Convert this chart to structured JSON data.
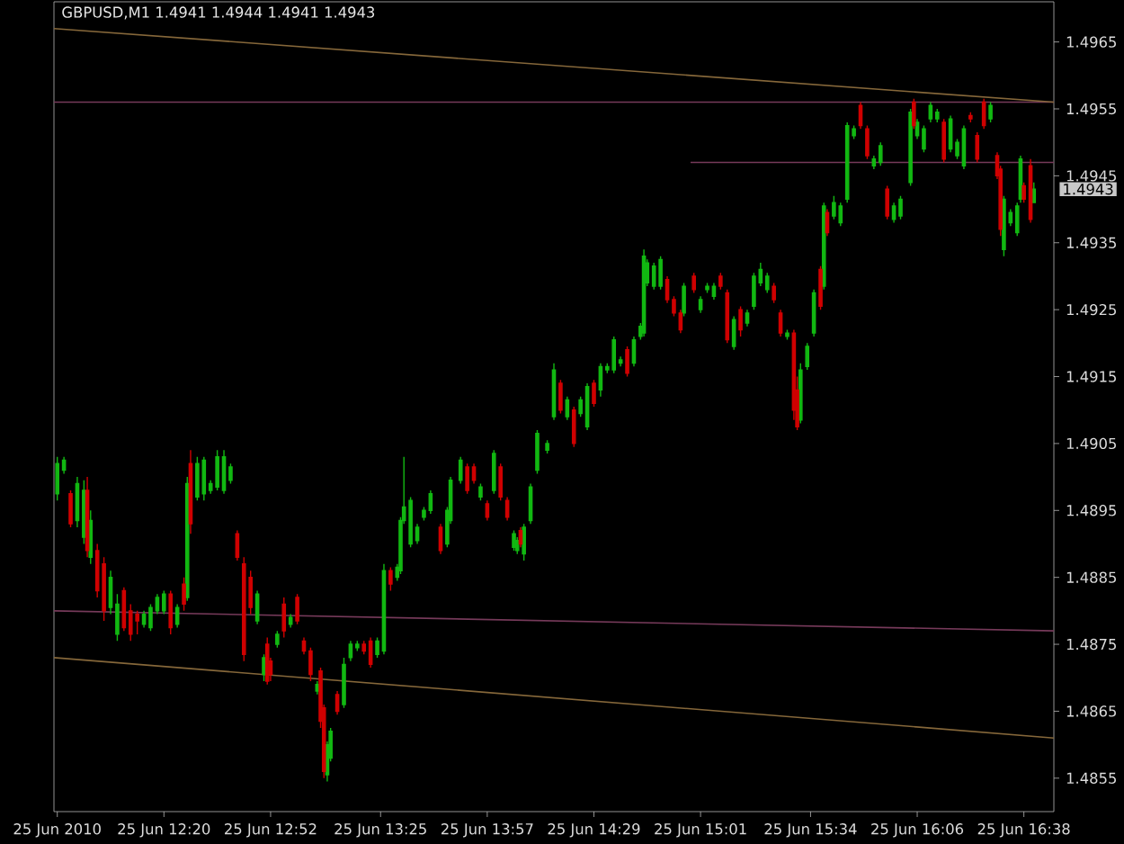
{
  "chart_data": {
    "type": "candlestick",
    "title": "GBPUSD,M1 1.4941 1.4944 1.4941 1.4943",
    "series": [
      {
        "type": "line",
        "color": "#85673a",
        "x": [
          "2010-06-25T11:47",
          "2010-06-25T16:47"
        ],
        "values": [
          1.4967,
          1.4956
        ]
      },
      {
        "type": "line",
        "color": "#763a5a",
        "x": [
          "2010-06-25T11:47",
          "2010-06-25T16:47"
        ],
        "values": [
          1.488,
          1.4877
        ]
      },
      {
        "type": "line",
        "color": "#85673a",
        "x": [
          "2010-06-25T11:47",
          "2010-06-25T16:47"
        ],
        "values": [
          1.4873,
          1.4861
        ]
      },
      {
        "type": "line",
        "color": "#763a5a",
        "x": [
          "2010-06-25T14:58",
          "2010-06-25T16:47"
        ],
        "values": [
          1.4947,
          1.4947
        ]
      },
      {
        "color": "#12b812",
        "x": [
          "2010-06-25T11:48",
          "2010-06-25T11:50",
          "2010-06-25T11:54",
          "2010-06-25T11:56",
          "2010-06-25T11:58",
          "2010-06-25T12:04",
          "2010-06-25T12:06",
          "2010-06-25T12:14",
          "2010-06-25T12:16",
          "2010-06-25T12:18",
          "2010-06-25T12:20",
          "2010-06-25T12:24",
          "2010-06-25T12:27",
          "2010-06-25T12:30",
          "2010-06-25T12:32",
          "2010-06-25T12:34",
          "2010-06-25T12:36",
          "2010-06-25T12:38",
          "2010-06-25T12:40",
          "2010-06-25T12:48",
          "2010-06-25T12:50",
          "2010-06-25T12:54",
          "2010-06-25T12:58",
          "2010-06-25T13:06",
          "2010-06-25T13:09",
          "2010-06-25T13:10",
          "2010-06-25T13:14",
          "2010-06-25T13:16",
          "2010-06-25T13:18",
          "2010-06-25T13:24",
          "2010-06-25T13:26",
          "2010-06-25T13:30",
          "2010-06-25T13:31",
          "2010-06-25T13:32",
          "2010-06-25T13:34",
          "2010-06-25T13:36",
          "2010-06-25T13:38",
          "2010-06-25T13:40",
          "2010-06-25T13:45",
          "2010-06-25T13:46",
          "2010-06-25T13:49",
          "2010-06-25T13:55",
          "2010-06-25T13:59",
          "2010-06-25T14:05",
          "2010-06-25T14:06",
          "2010-06-25T14:08",
          "2010-06-25T14:10",
          "2010-06-25T14:12",
          "2010-06-25T14:15",
          "2010-06-25T14:17",
          "2010-06-25T14:21",
          "2010-06-25T14:25",
          "2010-06-25T14:27",
          "2010-06-25T14:31",
          "2010-06-25T14:33",
          "2010-06-25T14:35",
          "2010-06-25T14:37",
          "2010-06-25T14:41",
          "2010-06-25T14:43",
          "2010-06-25T14:44",
          "2010-06-25T14:45",
          "2010-06-25T14:47",
          "2010-06-25T14:49",
          "2010-06-25T14:56",
          "2010-06-25T15:01",
          "2010-06-25T15:03",
          "2010-06-25T15:05",
          "2010-06-25T15:11",
          "2010-06-25T15:15",
          "2010-06-25T15:17",
          "2010-06-25T15:19",
          "2010-06-25T15:21",
          "2010-06-25T15:27",
          "2010-06-25T15:31",
          "2010-06-25T15:33",
          "2010-06-25T15:35",
          "2010-06-25T15:38",
          "2010-06-25T15:41",
          "2010-06-25T15:43",
          "2010-06-25T15:45",
          "2010-06-25T15:47",
          "2010-06-25T15:53",
          "2010-06-25T15:55",
          "2010-06-25T15:59",
          "2010-06-25T16:01",
          "2010-06-25T16:04",
          "2010-06-25T16:06",
          "2010-06-25T16:08",
          "2010-06-25T16:10",
          "2010-06-25T16:12",
          "2010-06-25T16:16",
          "2010-06-25T16:18",
          "2010-06-25T16:20",
          "2010-06-25T16:28",
          "2010-06-25T16:32",
          "2010-06-25T16:34",
          "2010-06-25T16:36",
          "2010-06-25T16:37",
          "2010-06-25T16:41"
        ],
        "ohlc": [
          [
            1.48975,
            1.4903,
            1.48965,
            1.4902
          ],
          [
            1.4901,
            1.4903,
            1.49005,
            1.49025
          ],
          [
            1.48935,
            1.49,
            1.48925,
            1.4899
          ],
          [
            1.4891,
            1.48995,
            1.489,
            1.4898
          ],
          [
            1.4888,
            1.4895,
            1.4887,
            1.48935
          ],
          [
            1.48805,
            1.4886,
            1.48795,
            1.4885
          ],
          [
            1.48765,
            1.48825,
            1.48755,
            1.4881
          ],
          [
            1.4878,
            1.488,
            1.48775,
            1.48795
          ],
          [
            1.48775,
            1.4881,
            1.4877,
            1.48805
          ],
          [
            1.488,
            1.48825,
            1.48795,
            1.4882
          ],
          [
            1.488,
            1.4883,
            1.48795,
            1.48825
          ],
          [
            1.4878,
            1.4881,
            1.48775,
            1.48805
          ],
          [
            1.4882,
            1.49,
            1.48815,
            1.4899
          ],
          [
            1.4897,
            1.4903,
            1.48965,
            1.4902
          ],
          [
            1.48975,
            1.4903,
            1.48965,
            1.49025
          ],
          [
            1.4898,
            1.48995,
            1.48975,
            1.4899
          ],
          [
            1.48985,
            1.4904,
            1.4898,
            1.4903
          ],
          [
            1.4898,
            1.4904,
            1.48975,
            1.4903
          ],
          [
            1.48995,
            1.4902,
            1.4899,
            1.49015
          ],
          [
            1.48785,
            1.4883,
            1.4878,
            1.48825
          ],
          [
            1.48705,
            1.48735,
            1.48695,
            1.4873
          ],
          [
            1.4875,
            1.4877,
            1.48745,
            1.48765
          ],
          [
            1.4878,
            1.48795,
            1.48775,
            1.4879
          ],
          [
            1.4868,
            1.48695,
            1.48675,
            1.4869
          ],
          [
            1.48555,
            1.48605,
            1.48545,
            1.486
          ],
          [
            1.4858,
            1.48625,
            1.48575,
            1.4862
          ],
          [
            1.4866,
            1.4873,
            1.48655,
            1.4872
          ],
          [
            1.4873,
            1.48755,
            1.48725,
            1.4875
          ],
          [
            1.48745,
            1.48755,
            1.4874,
            1.4875
          ],
          [
            1.48735,
            1.4876,
            1.4873,
            1.48755
          ],
          [
            1.4874,
            1.4887,
            1.48735,
            1.4886
          ],
          [
            1.4885,
            1.4887,
            1.48845,
            1.48865
          ],
          [
            1.4886,
            1.4894,
            1.48855,
            1.48935
          ],
          [
            1.48935,
            1.4903,
            1.4893,
            1.48955
          ],
          [
            1.489,
            1.4897,
            1.48895,
            1.48965
          ],
          [
            1.48905,
            1.4893,
            1.489,
            1.48925
          ],
          [
            1.4894,
            1.48955,
            1.48935,
            1.4895
          ],
          [
            1.4895,
            1.4898,
            1.48945,
            1.48975
          ],
          [
            1.489,
            1.48955,
            1.48895,
            1.4895
          ],
          [
            1.48935,
            1.49,
            1.4893,
            1.48995
          ],
          [
            1.48995,
            1.4903,
            1.4899,
            1.49025
          ],
          [
            1.4897,
            1.4899,
            1.48965,
            1.48985
          ],
          [
            1.4898,
            1.4904,
            1.48975,
            1.49035
          ],
          [
            1.48895,
            1.4892,
            1.4889,
            1.48915
          ],
          [
            1.4889,
            1.4891,
            1.48885,
            1.48905
          ],
          [
            1.48885,
            1.4893,
            1.48875,
            1.48925
          ],
          [
            1.48935,
            1.4899,
            1.4893,
            1.48985
          ],
          [
            1.4901,
            1.4907,
            1.49005,
            1.49065
          ],
          [
            1.4904,
            1.49055,
            1.49035,
            1.4905
          ],
          [
            1.4909,
            1.4917,
            1.49085,
            1.4916
          ],
          [
            1.4909,
            1.4912,
            1.49085,
            1.49115
          ],
          [
            1.49095,
            1.4912,
            1.4909,
            1.49115
          ],
          [
            1.49075,
            1.4914,
            1.4907,
            1.49135
          ],
          [
            1.4913,
            1.4917,
            1.4912,
            1.49165
          ],
          [
            1.4916,
            1.4917,
            1.49155,
            1.49165
          ],
          [
            1.4916,
            1.4921,
            1.49155,
            1.49205
          ],
          [
            1.4917,
            1.4918,
            1.49165,
            1.49175
          ],
          [
            1.4917,
            1.4921,
            1.49165,
            1.49205
          ],
          [
            1.4921,
            1.4923,
            1.49205,
            1.49225
          ],
          [
            1.49215,
            1.4934,
            1.4921,
            1.4933
          ],
          [
            1.4929,
            1.49325,
            1.49285,
            1.4932
          ],
          [
            1.49285,
            1.4932,
            1.4928,
            1.49315
          ],
          [
            1.49285,
            1.4933,
            1.4928,
            1.49325
          ],
          [
            1.49245,
            1.4929,
            1.4924,
            1.49285
          ],
          [
            1.4925,
            1.4927,
            1.49245,
            1.49265
          ],
          [
            1.4928,
            1.4929,
            1.49275,
            1.49285
          ],
          [
            1.4927,
            1.4929,
            1.49265,
            1.49285
          ],
          [
            1.49195,
            1.4924,
            1.4919,
            1.49235
          ],
          [
            1.4923,
            1.4925,
            1.49225,
            1.49245
          ],
          [
            1.49255,
            1.49305,
            1.4925,
            1.493
          ],
          [
            1.4929,
            1.4932,
            1.49285,
            1.4931
          ],
          [
            1.4928,
            1.49305,
            1.49275,
            1.493
          ],
          [
            1.4921,
            1.4922,
            1.49205,
            1.49215
          ],
          [
            1.49085,
            1.4917,
            1.4908,
            1.4916
          ],
          [
            1.49165,
            1.492,
            1.4916,
            1.49195
          ],
          [
            1.49215,
            1.4928,
            1.4921,
            1.49275
          ],
          [
            1.49285,
            1.4941,
            1.4928,
            1.49405
          ],
          [
            1.4939,
            1.4942,
            1.49385,
            1.4941
          ],
          [
            1.4938,
            1.4941,
            1.49375,
            1.49405
          ],
          [
            1.49415,
            1.4953,
            1.4941,
            1.49525
          ],
          [
            1.4951,
            1.49525,
            1.49505,
            1.4952
          ],
          [
            1.49465,
            1.4948,
            1.4946,
            1.49475
          ],
          [
            1.4947,
            1.495,
            1.49465,
            1.49495
          ],
          [
            1.49385,
            1.4941,
            1.4938,
            1.49405
          ],
          [
            1.4939,
            1.4942,
            1.49385,
            1.49415
          ],
          [
            1.4944,
            1.4955,
            1.49435,
            1.49545
          ],
          [
            1.4951,
            1.49535,
            1.49505,
            1.4953
          ],
          [
            1.4949,
            1.49525,
            1.49485,
            1.4952
          ],
          [
            1.49535,
            1.4956,
            1.4953,
            1.49555
          ],
          [
            1.49535,
            1.4955,
            1.4953,
            1.49545
          ],
          [
            1.4949,
            1.4954,
            1.49485,
            1.49535
          ],
          [
            1.4948,
            1.49505,
            1.49475,
            1.495
          ],
          [
            1.49465,
            1.49525,
            1.4946,
            1.4952
          ],
          [
            1.49535,
            1.4956,
            1.4953,
            1.49555
          ],
          [
            1.4934,
            1.4942,
            1.4933,
            1.49415
          ],
          [
            1.4938,
            1.494,
            1.49375,
            1.49395
          ],
          [
            1.49365,
            1.4941,
            1.4936,
            1.49405
          ],
          [
            1.49415,
            1.4948,
            1.4941,
            1.49475
          ],
          [
            1.4941,
            1.4944,
            1.4941,
            1.4943
          ]
        ]
      },
      {
        "color": "#d00000",
        "x": [
          "2010-06-25T11:52",
          "2010-06-25T11:57",
          "2010-06-25T12:00",
          "2010-06-25T12:02",
          "2010-06-25T12:08",
          "2010-06-25T12:10",
          "2010-06-25T12:12",
          "2010-06-25T12:22",
          "2010-06-25T12:26",
          "2010-06-25T12:28",
          "2010-06-25T12:42",
          "2010-06-25T12:44",
          "2010-06-25T12:46",
          "2010-06-25T12:51",
          "2010-06-25T12:52",
          "2010-06-25T12:56",
          "2010-06-25T13:00",
          "2010-06-25T13:02",
          "2010-06-25T13:04",
          "2010-06-25T13:07",
          "2010-06-25T13:08",
          "2010-06-25T13:12",
          "2010-06-25T13:20",
          "2010-06-25T13:22",
          "2010-06-25T13:28",
          "2010-06-25T13:43",
          "2010-06-25T13:51",
          "2010-06-25T13:53",
          "2010-06-25T13:57",
          "2010-06-25T14:01",
          "2010-06-25T14:03",
          "2010-06-25T14:07",
          "2010-06-25T14:19",
          "2010-06-25T14:23",
          "2010-06-25T14:29",
          "2010-06-25T14:39",
          "2010-06-25T14:51",
          "2010-06-25T14:53",
          "2010-06-25T14:55",
          "2010-06-25T14:59",
          "2010-06-25T15:07",
          "2010-06-25T15:09",
          "2010-06-25T15:13",
          "2010-06-25T15:23",
          "2010-06-25T15:25",
          "2010-06-25T15:29",
          "2010-06-25T15:30",
          "2010-06-25T15:37",
          "2010-06-25T15:39",
          "2010-06-25T15:49",
          "2010-06-25T15:51",
          "2010-06-25T15:57",
          "2010-06-25T16:05",
          "2010-06-25T16:14",
          "2010-06-25T16:22",
          "2010-06-25T16:24",
          "2010-06-25T16:26",
          "2010-06-25T16:30",
          "2010-06-25T16:31",
          "2010-06-25T16:38",
          "2010-06-25T16:40"
        ],
        "ohlc": [
          [
            1.48975,
            1.4898,
            1.48925,
            1.4893
          ],
          [
            1.4898,
            1.49,
            1.4888,
            1.4889
          ],
          [
            1.4889,
            1.489,
            1.4882,
            1.4883
          ],
          [
            1.4887,
            1.4888,
            1.48785,
            1.488
          ],
          [
            1.4883,
            1.48835,
            1.4877,
            1.48775
          ],
          [
            1.488,
            1.4881,
            1.48755,
            1.48765
          ],
          [
            1.48795,
            1.488,
            1.48765,
            1.48785
          ],
          [
            1.48825,
            1.4883,
            1.48765,
            1.48775
          ],
          [
            1.4884,
            1.4885,
            1.488,
            1.4881
          ],
          [
            1.4902,
            1.4904,
            1.48915,
            1.4893
          ],
          [
            1.48915,
            1.4892,
            1.48875,
            1.4888
          ],
          [
            1.4887,
            1.4888,
            1.48725,
            1.48735
          ],
          [
            1.4885,
            1.4886,
            1.48795,
            1.48805
          ],
          [
            1.4875,
            1.4876,
            1.4869,
            1.48695
          ],
          [
            1.48725,
            1.4873,
            1.48695,
            1.48705
          ],
          [
            1.4881,
            1.4882,
            1.4876,
            1.4877
          ],
          [
            1.4882,
            1.48825,
            1.4878,
            1.48785
          ],
          [
            1.48755,
            1.4876,
            1.48735,
            1.4874
          ],
          [
            1.4874,
            1.48745,
            1.48695,
            1.48705
          ],
          [
            1.4871,
            1.48715,
            1.48625,
            1.48635
          ],
          [
            1.48655,
            1.4866,
            1.4855,
            1.4856
          ],
          [
            1.48675,
            1.4868,
            1.48645,
            1.4865
          ],
          [
            1.4875,
            1.48755,
            1.48735,
            1.4874
          ],
          [
            1.48755,
            1.4876,
            1.48715,
            1.4872
          ],
          [
            1.4886,
            1.48865,
            1.4883,
            1.4884
          ],
          [
            1.48925,
            1.4893,
            1.48885,
            1.4889
          ],
          [
            1.49015,
            1.4902,
            1.48975,
            1.4898
          ],
          [
            1.49015,
            1.4902,
            1.4899,
            1.48995
          ],
          [
            1.4896,
            1.48965,
            1.48935,
            1.4894
          ],
          [
            1.49015,
            1.4902,
            1.48965,
            1.4897
          ],
          [
            1.48965,
            1.4897,
            1.48935,
            1.4894
          ],
          [
            1.4892,
            1.48925,
            1.48895,
            1.489
          ],
          [
            1.4914,
            1.49145,
            1.49095,
            1.491
          ],
          [
            1.491,
            1.49105,
            1.49045,
            1.4905
          ],
          [
            1.4914,
            1.49145,
            1.49105,
            1.4911
          ],
          [
            1.4919,
            1.49195,
            1.4915,
            1.49155
          ],
          [
            1.49295,
            1.493,
            1.4926,
            1.49265
          ],
          [
            1.49265,
            1.4927,
            1.4924,
            1.49245
          ],
          [
            1.49245,
            1.4925,
            1.49215,
            1.4922
          ],
          [
            1.493,
            1.49305,
            1.49275,
            1.4928
          ],
          [
            1.493,
            1.49305,
            1.4928,
            1.49285
          ],
          [
            1.49275,
            1.4928,
            1.492,
            1.49205
          ],
          [
            1.4925,
            1.49255,
            1.4921,
            1.4922
          ],
          [
            1.49285,
            1.4929,
            1.4926,
            1.49265
          ],
          [
            1.49245,
            1.4925,
            1.4921,
            1.49215
          ],
          [
            1.49215,
            1.4922,
            1.49085,
            1.491
          ],
          [
            1.4913,
            1.4915,
            1.4907,
            1.49075
          ],
          [
            1.4931,
            1.49315,
            1.4925,
            1.49255
          ],
          [
            1.49395,
            1.494,
            1.4936,
            1.49365
          ],
          [
            1.49555,
            1.4956,
            1.4952,
            1.49525
          ],
          [
            1.4952,
            1.49525,
            1.49475,
            1.4948
          ],
          [
            1.4943,
            1.49435,
            1.49385,
            1.4939
          ],
          [
            1.4956,
            1.49565,
            1.4952,
            1.49525
          ],
          [
            1.4953,
            1.49535,
            1.4947,
            1.49475
          ],
          [
            1.4954,
            1.49545,
            1.4953,
            1.49535
          ],
          [
            1.4951,
            1.49515,
            1.4947,
            1.49475
          ],
          [
            1.4956,
            1.49565,
            1.4952,
            1.49525
          ],
          [
            1.4948,
            1.49485,
            1.49445,
            1.4945
          ],
          [
            1.4946,
            1.49465,
            1.4936,
            1.4937
          ],
          [
            1.49435,
            1.4944,
            1.4941,
            1.49415
          ],
          [
            1.49465,
            1.49475,
            1.4938,
            1.49385
          ]
        ]
      }
    ],
    "xlim": [
      "2010-06-25T11:47",
      "2010-06-25T16:47"
    ],
    "xticks": [
      {
        "value": "2010-06-25T11:48",
        "label": "25 Jun 2010"
      },
      {
        "value": "2010-06-25T12:20",
        "label": "25 Jun 12:20"
      },
      {
        "value": "2010-06-25T12:52",
        "label": "25 Jun 12:52"
      },
      {
        "value": "2010-06-25T13:25",
        "label": "25 Jun 13:25"
      },
      {
        "value": "2010-06-25T13:57",
        "label": "25 Jun 13:57"
      },
      {
        "value": "2010-06-25T14:29",
        "label": "25 Jun 14:29"
      },
      {
        "value": "2010-06-25T15:01",
        "label": "25 Jun 15:01"
      },
      {
        "value": "2010-06-25T15:34",
        "label": "25 Jun 15:34"
      },
      {
        "value": "2010-06-25T16:06",
        "label": "25 Jun 16:06"
      },
      {
        "value": "2010-06-25T16:38",
        "label": "25 Jun 16:38"
      }
    ],
    "ylim": [
      1.485,
      1.4971
    ],
    "yticks": [
      1.4855,
      1.4865,
      1.4875,
      1.4885,
      1.4895,
      1.4905,
      1.4915,
      1.4925,
      1.4935,
      1.4945,
      1.4955,
      1.4965
    ],
    "ref_lines": [
      {
        "axis": "y",
        "value": 1.4956,
        "color": "#763a5a"
      }
    ],
    "annotations": [
      "1.4943"
    ]
  }
}
